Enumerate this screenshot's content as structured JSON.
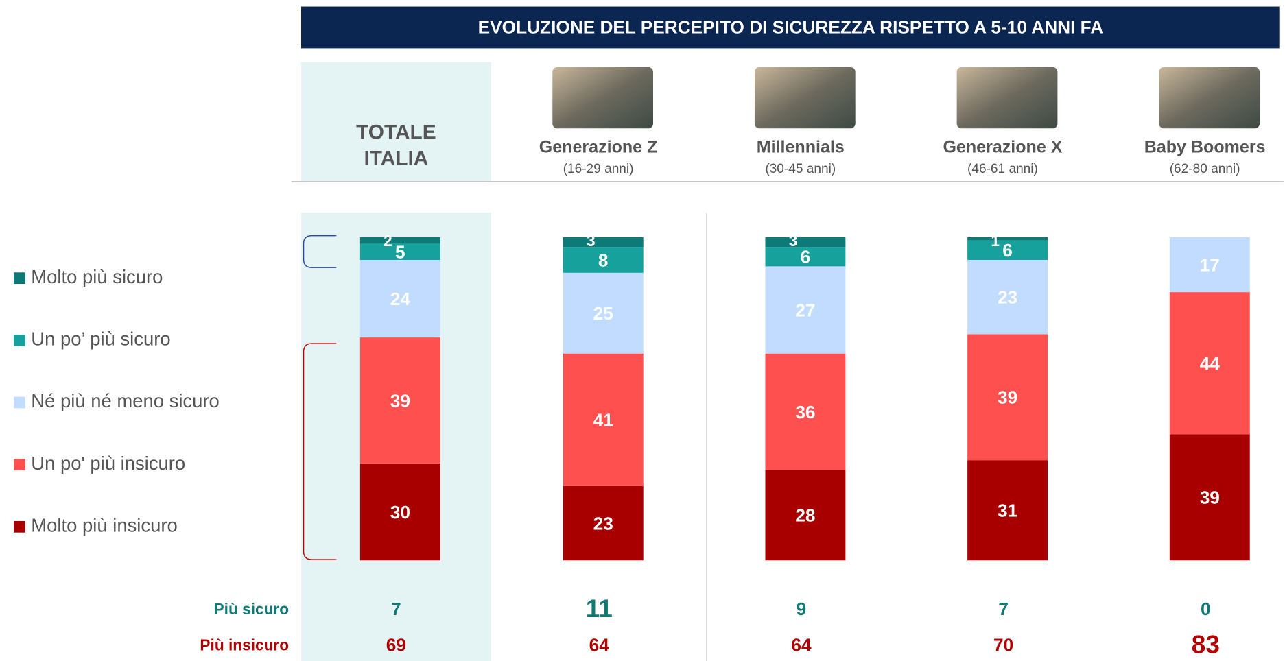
{
  "chart_data": {
    "type": "bar",
    "stacked": true,
    "title": "EVOLUZIONE DEL PERCEPITO DI SICUREZZA RISPETTO A 5-10 ANNI FA",
    "categories": [
      "TOTALE ITALIA",
      "Generazione Z",
      "Millennials",
      "Generazione X",
      "Baby Boomers"
    ],
    "age_ranges": [
      null,
      "(16-29 anni)",
      "(30-45 anni)",
      "(46-61 anni)",
      "(62-80 anni)"
    ],
    "ylim": [
      0,
      100
    ],
    "series": [
      {
        "name": "Molto più sicuro",
        "color": "#0e7a78",
        "values": [
          2,
          3,
          3,
          1,
          0
        ]
      },
      {
        "name": "Un po’ più sicuro",
        "color": "#17a19c",
        "values": [
          5,
          8,
          6,
          6,
          0
        ]
      },
      {
        "name": "Né più né meno sicuro",
        "color": "#c2dcff",
        "values": [
          24,
          25,
          27,
          23,
          17
        ]
      },
      {
        "name": "Un po' più insicuro",
        "color": "#ff5050",
        "values": [
          39,
          41,
          36,
          39,
          44
        ]
      },
      {
        "name": "Molto più insicuro",
        "color": "#a80000",
        "values": [
          30,
          23,
          28,
          31,
          39
        ]
      }
    ],
    "summary": [
      {
        "name": "Più sicuro",
        "color": "#127a74",
        "values": [
          7,
          11,
          9,
          7,
          0
        ]
      },
      {
        "name": "Più insicuro",
        "color": "#b00000",
        "values": [
          69,
          64,
          64,
          70,
          83
        ]
      }
    ]
  }
}
